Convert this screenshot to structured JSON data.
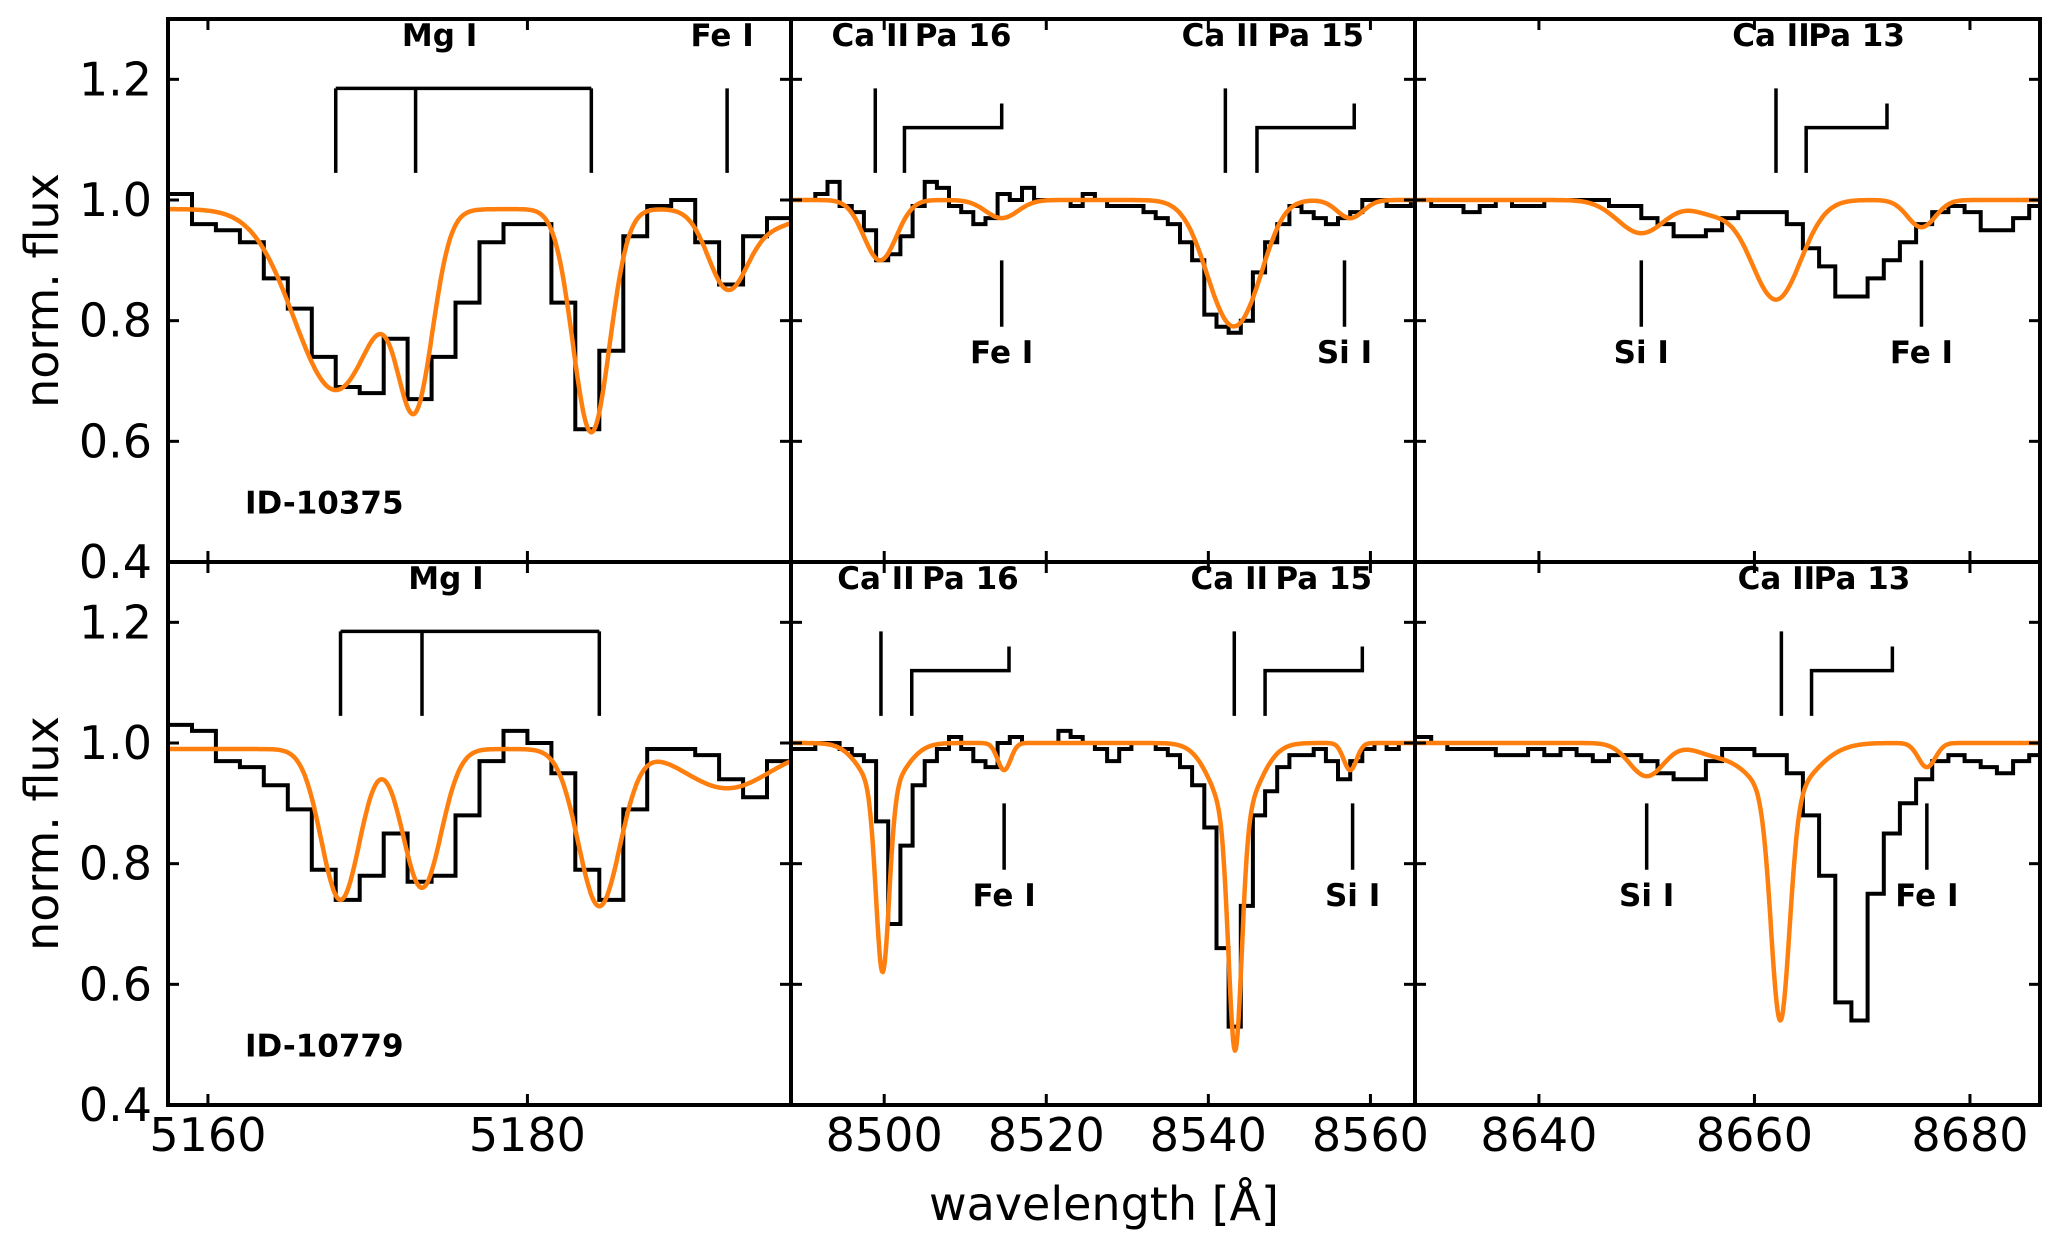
{
  "chart_data": {
    "type": "line",
    "xlabel": "wavelength [Å]",
    "ylabel": "norm. flux",
    "ylim": [
      0.4,
      1.3
    ],
    "yticks": [
      "0.4",
      "0.6",
      "0.8",
      "1.0",
      "1.2"
    ],
    "colors": {
      "observed": "#000000",
      "model": "#ff7f0e",
      "frame": "#000000"
    },
    "columns": [
      {
        "xlim": [
          5157.5,
          5196.5
        ],
        "xticks": [
          "5160",
          "5180"
        ]
      },
      {
        "xlim": [
          8488.5,
          8565.5
        ],
        "xticks": [
          "8500",
          "8520",
          "8540",
          "8560"
        ]
      },
      {
        "xlim": [
          8628.5,
          8686.5
        ],
        "xticks": [
          "8640",
          "8660",
          "8680"
        ]
      }
    ],
    "rows": [
      {
        "id_label": "ID-10375",
        "panels": [
          {
            "observed": {
              "start": 5157.5,
              "step": 1.5,
              "flux": [
                1.01,
                0.96,
                0.95,
                0.93,
                0.87,
                0.82,
                0.74,
                0.69,
                0.68,
                0.77,
                0.67,
                0.74,
                0.83,
                0.93,
                0.96,
                0.96,
                0.83,
                0.62,
                0.75,
                0.94,
                0.99,
                1.0,
                0.93,
                0.86,
                0.94,
                0.97,
                0.98
              ]
            },
            "model": {
              "continuum": 0.985,
              "lines": [
                [
                  5168.0,
                  0.3,
                  2.6
                ],
                [
                  5173.0,
                  0.29,
                  1.1
                ],
                [
                  5184.0,
                  0.37,
                  1.15
                ],
                [
                  5192.5,
                  0.12,
                  1.2
                ],
                [
                  5195.0,
                  0.03,
                  2.0
                ]
              ]
            },
            "annotations": [
              {
                "label": "Mg I",
                "type": "bracket-up",
                "ticks": [
                  5168.0,
                  5173.0,
                  5184.0
                ]
              },
              {
                "label": "Fe I",
                "type": "up",
                "x": 5192.5
              }
            ]
          },
          {
            "observed": {
              "start": 8488.5,
              "step": 1.5,
              "flux": [
                1.0,
                1.0,
                1.01,
                1.03,
                0.99,
                0.98,
                0.95,
                0.9,
                0.91,
                0.94,
                0.99,
                1.03,
                1.02,
                0.99,
                0.98,
                0.96,
                0.97,
                1.01,
                1.0,
                1.02,
                1.0,
                1.0,
                1.0,
                0.99,
                1.01,
                1.0,
                0.99,
                0.99,
                0.99,
                0.98,
                0.97,
                0.96,
                0.93,
                0.9,
                0.81,
                0.79,
                0.78,
                0.8,
                0.88,
                0.93,
                0.96,
                0.99,
                0.98,
                0.97,
                0.96,
                0.97,
                0.98,
                1.0,
                1.0,
                0.99,
                0.99,
                1.0
              ]
            },
            "model": {
              "continuum": 1.0,
              "lines": [
                [
                  8499.5,
                  0.1,
                  2.0
                ],
                [
                  8514.5,
                  0.03,
                  2.0
                ],
                [
                  8542.8,
                  0.2,
                  3.0
                ],
                [
                  8546.0,
                  0.03,
                  2.0
                ],
                [
                  8557.5,
                  0.03,
                  1.6
                ]
              ]
            },
            "annotations": [
              {
                "label": "Ca II",
                "type": "up",
                "x": 8498.9
              },
              {
                "label": "Pa 16",
                "type": "hook-up",
                "x": 8502.5,
                "x2": 8514.5
              },
              {
                "label": "Ca II",
                "type": "up",
                "x": 8542.1
              },
              {
                "label": "Pa 15",
                "type": "hook-up",
                "x": 8546.0,
                "x2": 8558.0
              },
              {
                "label": "Fe I",
                "type": "down",
                "x": 8514.5
              },
              {
                "label": "Si I",
                "type": "down",
                "x": 8556.8
              }
            ]
          },
          {
            "observed": {
              "start": 8628.5,
              "step": 1.5,
              "flux": [
                1.0,
                0.99,
                0.99,
                0.98,
                0.99,
                1.0,
                0.99,
                0.99,
                1.0,
                1.0,
                1.0,
                1.0,
                0.99,
                0.99,
                0.97,
                0.96,
                0.94,
                0.94,
                0.95,
                0.97,
                0.98,
                0.98,
                0.98,
                0.96,
                0.92,
                0.89,
                0.84,
                0.84,
                0.87,
                0.9,
                0.93,
                0.96,
                0.98,
                0.99,
                0.98,
                0.95,
                0.95,
                0.97,
                0.99,
                1.0,
                1.0,
                1.0,
                1.0,
                1.0
              ]
            },
            "model": {
              "continuum": 1.0,
              "lines": [
                [
                  8649.5,
                  0.055,
                  2.2
                ],
                [
                  8662.0,
                  0.165,
                  2.3
                ],
                [
                  8675.5,
                  0.045,
                  1.3
                ],
                [
                  8656.0,
                  0.02,
                  1.8
                ]
              ]
            },
            "annotations": [
              {
                "label": "Ca II",
                "type": "up",
                "x": 8662.0
              },
              {
                "label": "Pa 13",
                "type": "hook-up",
                "x": 8664.8,
                "x2": 8672.3
              },
              {
                "label": "Si I",
                "type": "down",
                "x": 8649.5
              },
              {
                "label": "Fe I",
                "type": "down",
                "x": 8675.5
              }
            ]
          }
        ]
      },
      {
        "id_label": "ID-10779",
        "panels": [
          {
            "observed": {
              "start": 5157.5,
              "step": 1.5,
              "flux": [
                1.03,
                1.02,
                0.97,
                0.96,
                0.93,
                0.89,
                0.79,
                0.74,
                0.78,
                0.85,
                0.77,
                0.78,
                0.88,
                0.97,
                1.02,
                1.0,
                0.95,
                0.79,
                0.74,
                0.89,
                0.99,
                0.99,
                0.98,
                0.94,
                0.91,
                0.97,
                0.94,
                0.92
              ]
            },
            "model": {
              "continuum": 0.99,
              "lines": [
                [
                  5168.3,
                  0.25,
                  1.2
                ],
                [
                  5173.4,
                  0.23,
                  1.2
                ],
                [
                  5184.5,
                  0.26,
                  1.3
                ],
                [
                  5192.5,
                  0.065,
                  2.6
                ]
              ]
            },
            "annotations": [
              {
                "label": "Mg I",
                "type": "bracket-up",
                "ticks": [
                  5168.3,
                  5173.4,
                  5184.5
                ]
              }
            ]
          },
          {
            "observed": {
              "start": 8488.5,
              "step": 1.5,
              "flux": [
                0.99,
                0.99,
                1.0,
                1.0,
                0.99,
                0.98,
                0.97,
                0.87,
                0.7,
                0.83,
                0.93,
                0.97,
                0.99,
                1.01,
                0.99,
                0.97,
                0.96,
                1.0,
                1.01,
                1.0,
                1.0,
                1.0,
                1.02,
                1.01,
                1.0,
                0.99,
                0.97,
                0.99,
                1.0,
                1.0,
                0.99,
                0.98,
                0.96,
                0.93,
                0.86,
                0.66,
                0.53,
                0.73,
                0.88,
                0.92,
                0.96,
                0.98,
                0.98,
                0.99,
                0.97,
                0.94,
                0.97,
                0.99,
                1.0,
                0.99,
                1.0,
                1.0
              ]
            },
            "model": {
              "continuum": 1.0,
              "lines": [
                [
                  8499.8,
                  0.3,
                  0.8
                ],
                [
                  8499.8,
                  0.08,
                  2.5
                ],
                [
                  8514.8,
                  0.045,
                  0.8
                ],
                [
                  8543.3,
                  0.38,
                  0.8
                ],
                [
                  8543.3,
                  0.13,
                  2.6
                ],
                [
                  8557.5,
                  0.045,
                  0.8
                ]
              ]
            },
            "annotations": [
              {
                "label": "Ca II",
                "type": "up",
                "x": 8499.6
              },
              {
                "label": "Pa 16",
                "type": "hook-up",
                "x": 8503.4,
                "x2": 8515.4
              },
              {
                "label": "Ca II",
                "type": "up",
                "x": 8543.2
              },
              {
                "label": "Pa 15",
                "type": "hook-up",
                "x": 8547.0,
                "x2": 8559.0
              },
              {
                "label": "Fe I",
                "type": "down",
                "x": 8514.8
              },
              {
                "label": "Si I",
                "type": "down",
                "x": 8557.8
              }
            ]
          },
          {
            "observed": {
              "start": 8628.5,
              "step": 1.5,
              "flux": [
                1.01,
                1.0,
                0.99,
                0.99,
                0.99,
                0.98,
                0.98,
                0.99,
                0.98,
                0.99,
                0.98,
                0.97,
                0.98,
                0.98,
                0.97,
                0.95,
                0.94,
                0.94,
                0.97,
                0.99,
                0.99,
                0.98,
                0.98,
                0.95,
                0.88,
                0.78,
                0.57,
                0.54,
                0.75,
                0.85,
                0.9,
                0.94,
                0.97,
                0.98,
                0.97,
                0.96,
                0.95,
                0.97,
                0.98,
                0.99,
                0.99,
                1.0,
                1.0,
                1.0
              ]
            },
            "model": {
              "continuum": 1.0,
              "lines": [
                [
                  8662.4,
                  0.37,
                  0.85
                ],
                [
                  8662.4,
                  0.09,
                  2.8
                ],
                [
                  8650.0,
                  0.055,
                  1.6
                ],
                [
                  8676.0,
                  0.04,
                  0.8
                ],
                [
                  8656.0,
                  0.015,
                  1.8
                ]
              ]
            },
            "annotations": [
              {
                "label": "Ca II",
                "type": "up",
                "x": 8662.5
              },
              {
                "label": "Pa 13",
                "type": "hook-up",
                "x": 8665.3,
                "x2": 8672.8
              },
              {
                "label": "Si I",
                "type": "down",
                "x": 8650.0
              },
              {
                "label": "Fe I",
                "type": "down",
                "x": 8676.0
              }
            ]
          }
        ]
      }
    ]
  }
}
